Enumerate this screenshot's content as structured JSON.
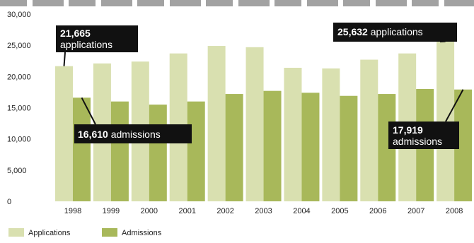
{
  "chart_data": {
    "type": "bar",
    "categories": [
      "1998",
      "1999",
      "2000",
      "2001",
      "2002",
      "2003",
      "2004",
      "2005",
      "2006",
      "2007",
      "2008"
    ],
    "series": [
      {
        "name": "Applications",
        "color": "#d9e0b0",
        "values": [
          21665,
          22100,
          22400,
          23700,
          24900,
          24700,
          21400,
          21300,
          22700,
          23700,
          25632
        ]
      },
      {
        "name": "Admissions",
        "color": "#a8b85a",
        "values": [
          16610,
          16000,
          15500,
          16000,
          17200,
          17700,
          17400,
          16900,
          17200,
          18000,
          17919
        ]
      }
    ],
    "ylim": [
      0,
      30000
    ],
    "yticks": [
      "0",
      "5,000",
      "10,000",
      "15,000",
      "20,000",
      "25,000",
      "30,000"
    ],
    "grid": false,
    "legend_position": "bottom-left",
    "annotations": [
      {
        "number": "21,665",
        "text": "applications"
      },
      {
        "number": "16,610",
        "text": "admissions"
      },
      {
        "number": "25,632",
        "text": "applications"
      },
      {
        "number": "17,919",
        "text": "admissions"
      }
    ]
  }
}
